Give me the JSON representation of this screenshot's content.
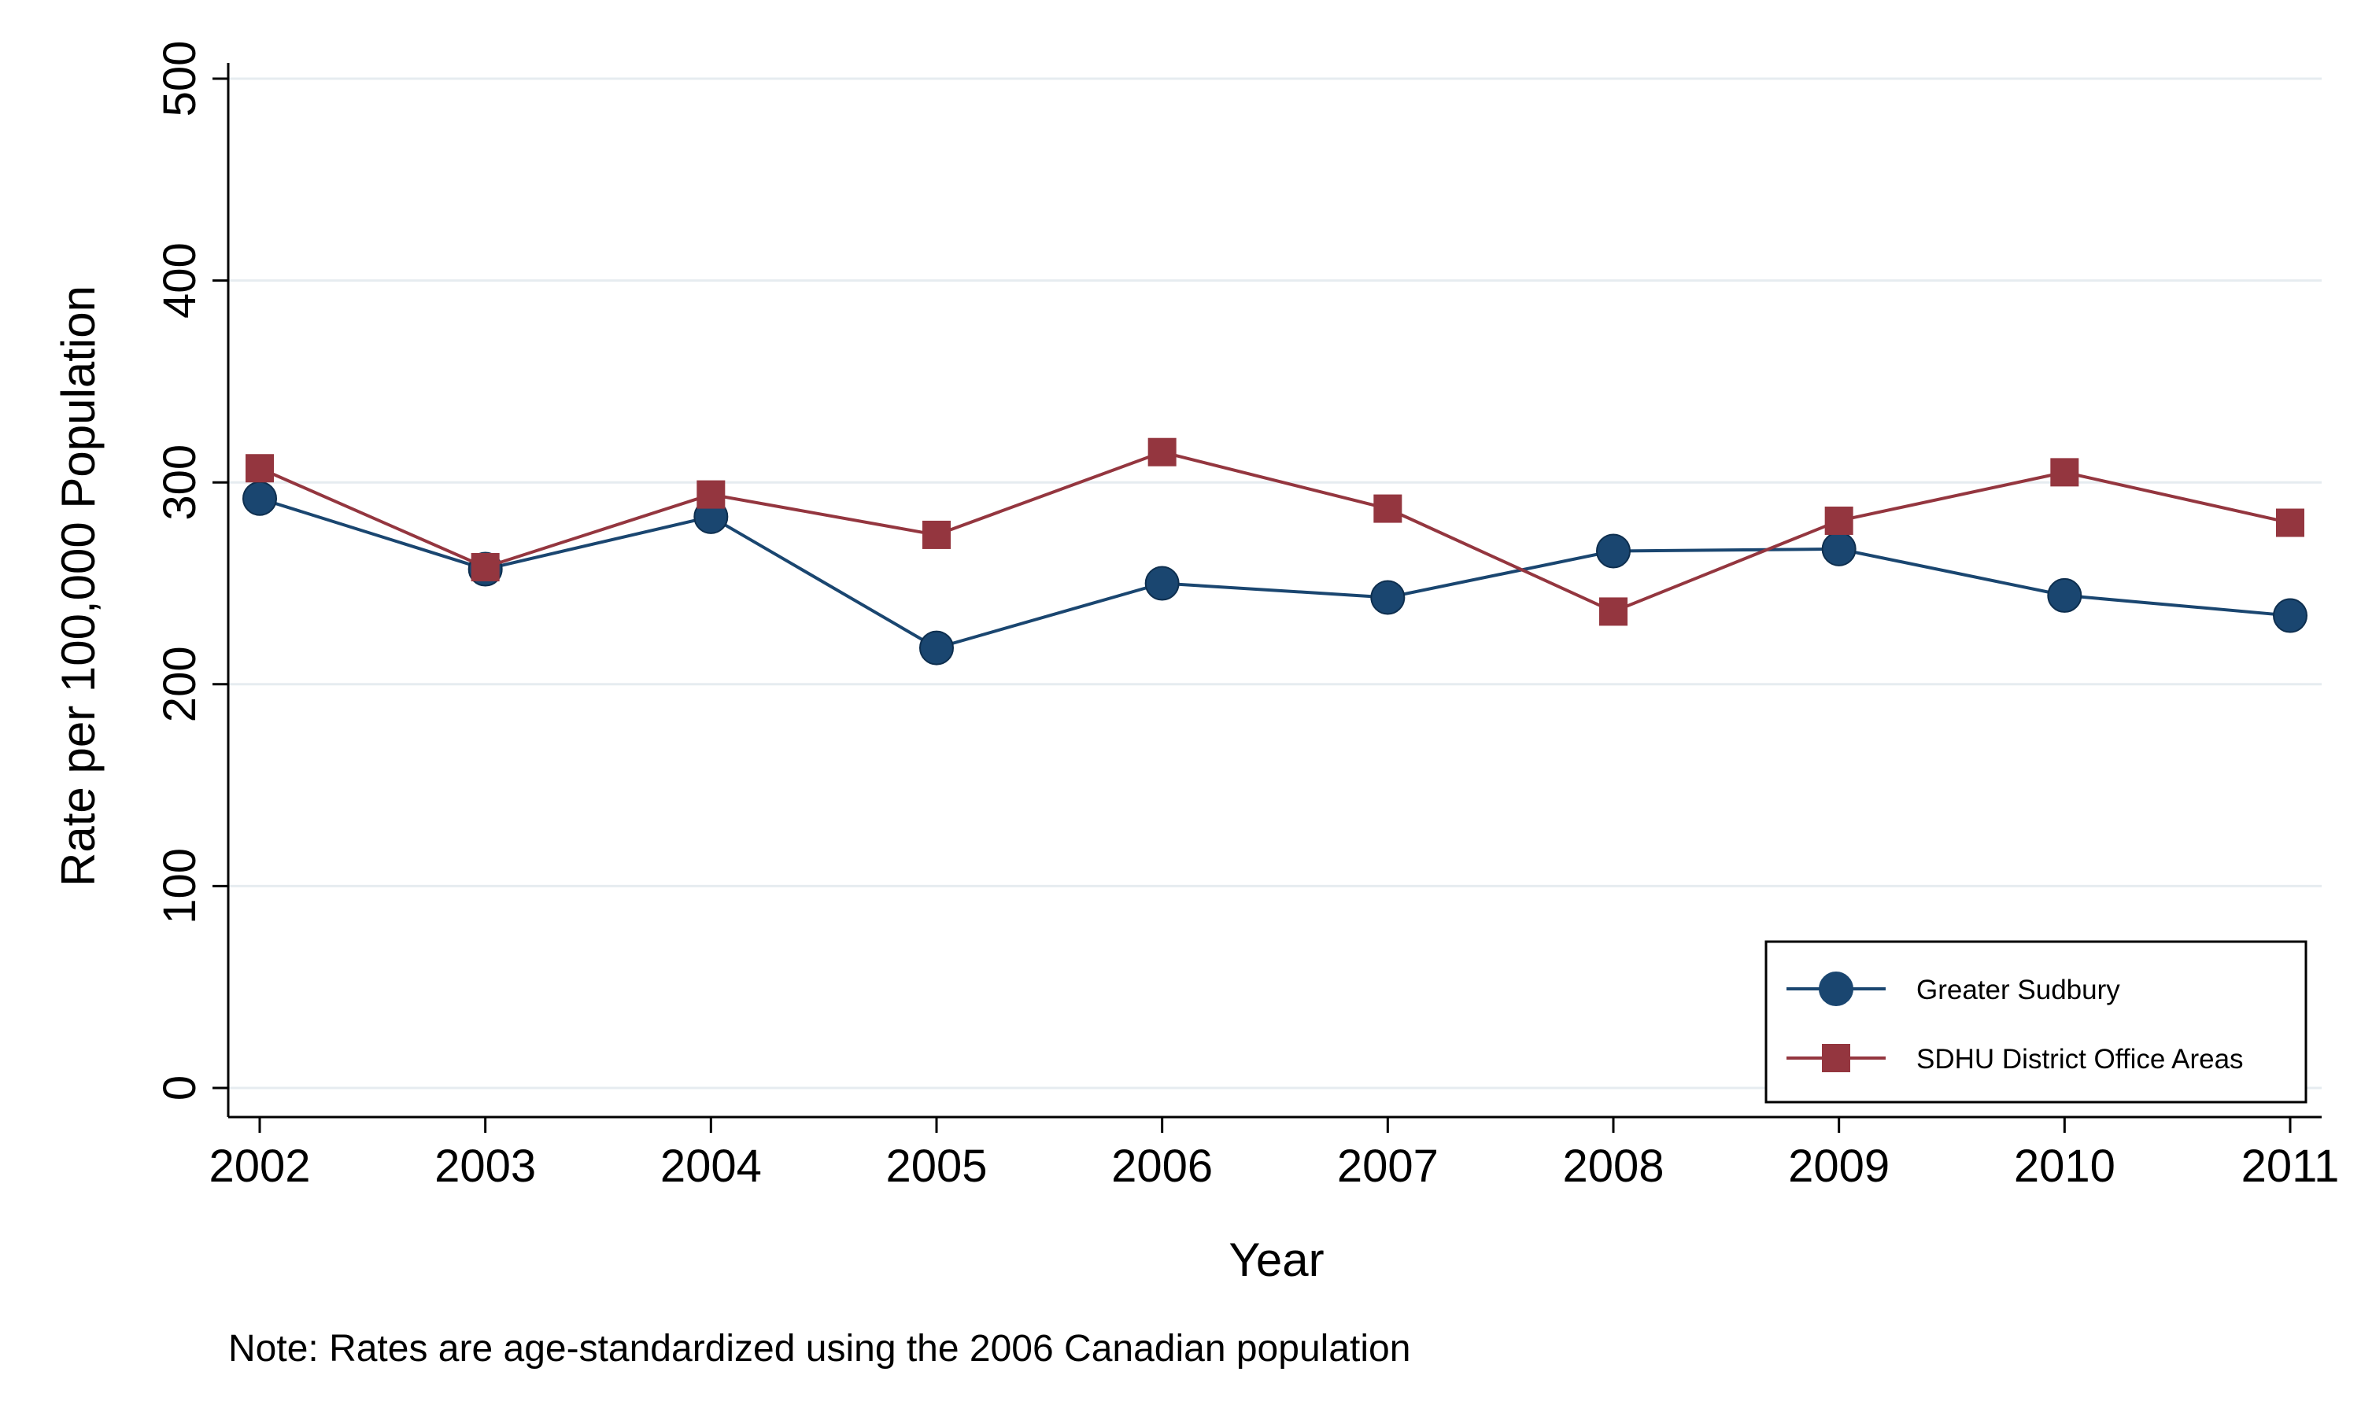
{
  "chart_data": {
    "type": "line",
    "xlabel": "Year",
    "ylabel": "Rate per 100,000 Population",
    "note": "Note: Rates are age-standardized using the 2006 Canadian population",
    "x": [
      "2002",
      "2003",
      "2004",
      "2005",
      "2006",
      "2007",
      "2008",
      "2009",
      "2010",
      "2011"
    ],
    "yticks": [
      "0",
      "100",
      "200",
      "300",
      "400",
      "500"
    ],
    "ylim": [
      0,
      500
    ],
    "grid": true,
    "legend_position": "bottom-right",
    "series": [
      {
        "name": "Greater Sudbury",
        "marker": "circle",
        "color": "#1a4670",
        "values": [
          292,
          257,
          283,
          218,
          250,
          243,
          266,
          267,
          244,
          234
        ]
      },
      {
        "name": "SDHU District Office Areas",
        "marker": "square",
        "color": "#94363f",
        "values": [
          307,
          258,
          294,
          274,
          315,
          287,
          236,
          281,
          305,
          280
        ]
      }
    ]
  }
}
